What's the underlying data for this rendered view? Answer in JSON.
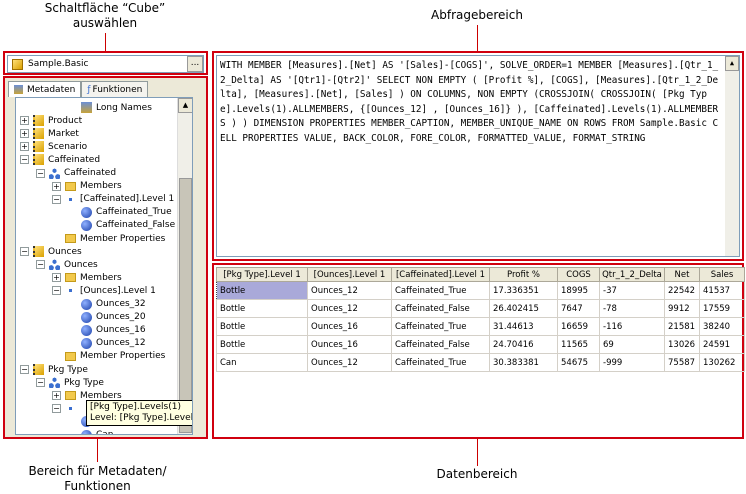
{
  "callouts": {
    "cube_select": "Schaltfläche “Cube” auswählen",
    "query_area": "Abfragebereich",
    "metadata_area": "Bereich für Metadaten/ Funktionen",
    "data_area": "Datenbereich"
  },
  "cube": {
    "value": "Sample.Basic",
    "browse_label": "..."
  },
  "tabs": [
    {
      "label": "Metadaten",
      "active": true
    },
    {
      "label": "Funktionen",
      "active": false
    }
  ],
  "tree": [
    {
      "label": "Long Names",
      "icon": "names",
      "indent": 3,
      "toggle": ""
    },
    {
      "label": "Product",
      "icon": "dim",
      "indent": 0,
      "toggle": "+"
    },
    {
      "label": "Market",
      "icon": "dim",
      "indent": 0,
      "toggle": "+"
    },
    {
      "label": "Scenario",
      "icon": "dim",
      "indent": 0,
      "toggle": "+"
    },
    {
      "label": "Caffeinated",
      "icon": "dim",
      "indent": 0,
      "toggle": "-"
    },
    {
      "label": "Caffeinated",
      "icon": "hier",
      "indent": 1,
      "toggle": "-"
    },
    {
      "label": "Members",
      "icon": "folder",
      "indent": 2,
      "toggle": "+"
    },
    {
      "label": "[Caffeinated].Level 1",
      "icon": "dot",
      "indent": 2,
      "toggle": "-"
    },
    {
      "label": "Caffeinated_True",
      "icon": "mem",
      "indent": 3,
      "toggle": ""
    },
    {
      "label": "Caffeinated_False",
      "icon": "mem",
      "indent": 3,
      "toggle": ""
    },
    {
      "label": "Member Properties",
      "icon": "folder",
      "indent": 2,
      "toggle": ""
    },
    {
      "label": "Ounces",
      "icon": "dim",
      "indent": 0,
      "toggle": "-"
    },
    {
      "label": "Ounces",
      "icon": "hier",
      "indent": 1,
      "toggle": "-"
    },
    {
      "label": "Members",
      "icon": "folder",
      "indent": 2,
      "toggle": "+"
    },
    {
      "label": "[Ounces].Level 1",
      "icon": "dot",
      "indent": 2,
      "toggle": "-"
    },
    {
      "label": "Ounces_32",
      "icon": "mem",
      "indent": 3,
      "toggle": ""
    },
    {
      "label": "Ounces_20",
      "icon": "mem",
      "indent": 3,
      "toggle": ""
    },
    {
      "label": "Ounces_16",
      "icon": "mem",
      "indent": 3,
      "toggle": ""
    },
    {
      "label": "Ounces_12",
      "icon": "mem",
      "indent": 3,
      "toggle": ""
    },
    {
      "label": "Member Properties",
      "icon": "folder",
      "indent": 2,
      "toggle": ""
    },
    {
      "label": "Pkg Type",
      "icon": "dim",
      "indent": 0,
      "toggle": "-"
    },
    {
      "label": "Pkg Type",
      "icon": "hier",
      "indent": 1,
      "toggle": "-"
    },
    {
      "label": "Members",
      "icon": "folder",
      "indent": 2,
      "toggle": "+"
    },
    {
      "label": "",
      "icon": "dot",
      "indent": 2,
      "toggle": "-"
    },
    {
      "label": "",
      "icon": "mem",
      "indent": 3,
      "toggle": ""
    },
    {
      "label": "Can",
      "icon": "mem",
      "indent": 3,
      "toggle": ""
    }
  ],
  "tooltip": {
    "line1": "[Pkg Type].Levels(1)",
    "line2": "Level: [Pkg Type].Level 1"
  },
  "query": "WITH MEMBER [Measures].[Net] AS '[Sales]-[COGS]', SOLVE_ORDER=1 MEMBER [Measures].[Qtr_1_2_Delta] AS '[Qtr1]-[Qtr2]' SELECT NON EMPTY ( [Profit %], [COGS], [Measures].[Qtr_1_2_Delta], [Measures].[Net], [Sales] ) ON COLUMNS, NON EMPTY (CROSSJOIN( CROSSJOIN( [Pkg Type].Levels(1).ALLMEMBERS, {[Ounces_12] , [Ounces_16]} ), [Caffeinated].Levels(1).ALLMEMBERS ) ) DIMENSION PROPERTIES MEMBER_CAPTION, MEMBER_UNIQUE_NAME ON ROWS FROM Sample.Basic CELL PROPERTIES VALUE, BACK_COLOR, FORE_COLOR, FORMATTED_VALUE, FORMAT_STRING",
  "grid": {
    "columns": [
      "[Pkg Type].Level 1",
      "[Ounces].Level 1",
      "[Caffeinated].Level 1",
      "Profit %",
      "COGS",
      "Qtr_1_2_Delta",
      "Net",
      "Sales"
    ],
    "rows": [
      [
        "Bottle",
        "Ounces_12",
        "Caffeinated_True",
        "17.336351",
        "18995",
        "-37",
        "22542",
        "41537"
      ],
      [
        "Bottle",
        "Ounces_12",
        "Caffeinated_False",
        "26.402415",
        "7647",
        "-78",
        "9912",
        "17559"
      ],
      [
        "Bottle",
        "Ounces_16",
        "Caffeinated_True",
        "31.44613",
        "16659",
        "-116",
        "21581",
        "38240"
      ],
      [
        "Bottle",
        "Ounces_16",
        "Caffeinated_False",
        "24.70416",
        "11565",
        "69",
        "13026",
        "24591"
      ],
      [
        "Can",
        "Ounces_12",
        "Caffeinated_True",
        "30.383381",
        "54675",
        "-999",
        "75587",
        "130262"
      ]
    ]
  },
  "colors": {
    "callout_red": "#d0000f",
    "selected_cell": "#a9a9d9"
  }
}
